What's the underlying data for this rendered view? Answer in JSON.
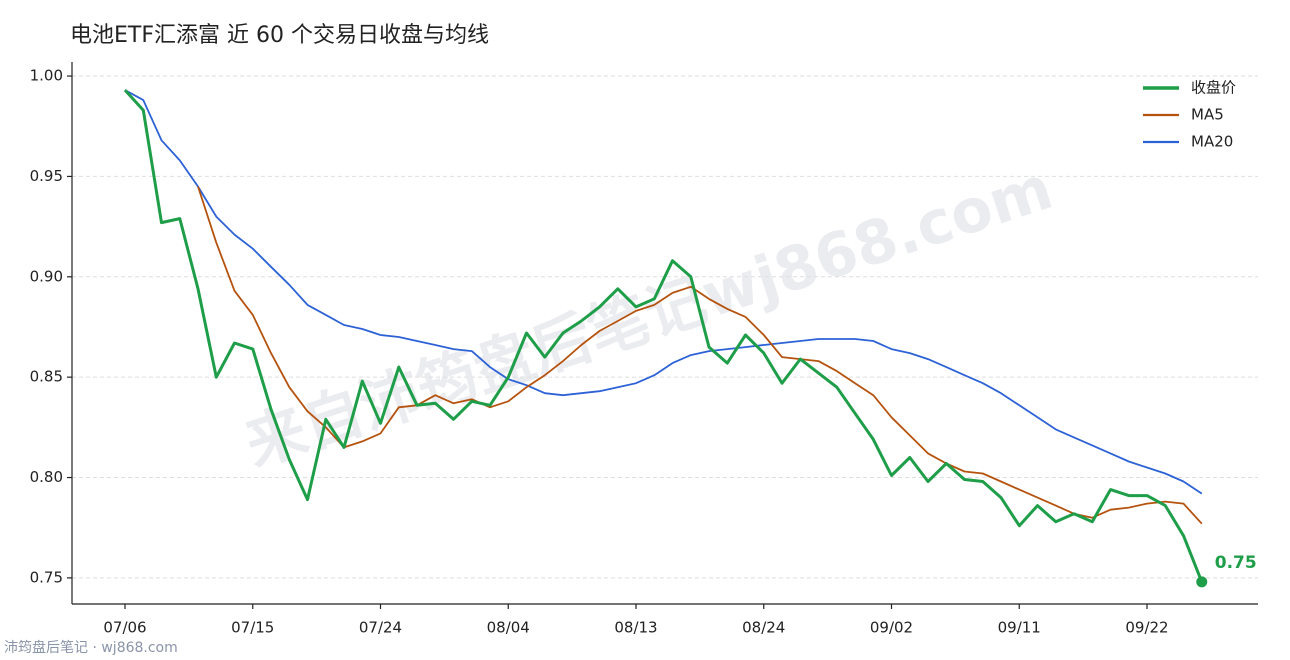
{
  "chart_data": {
    "type": "line",
    "title": "电池ETF汇添富 近 60 个交易日收盘与均线",
    "watermark": "来自沛筠盘后笔记wj868.com",
    "footer": "沛筠盘后笔记 · wj868.com",
    "categories": [
      "07/06",
      null,
      null,
      null,
      null,
      null,
      null,
      "07/15",
      null,
      null,
      null,
      null,
      null,
      null,
      "07/24",
      null,
      null,
      null,
      null,
      null,
      null,
      "08/04",
      null,
      null,
      null,
      null,
      null,
      null,
      "08/13",
      null,
      null,
      null,
      null,
      null,
      null,
      "08/24",
      null,
      null,
      null,
      null,
      null,
      null,
      "09/02",
      null,
      null,
      null,
      null,
      null,
      null,
      "09/11",
      null,
      null,
      null,
      null,
      null,
      null,
      "09/22",
      null,
      null,
      null
    ],
    "series": [
      {
        "name": "收盘价",
        "color": "#1f9e49",
        "width": 3,
        "values": [
          0.993,
          0.983,
          0.927,
          0.929,
          0.894,
          0.85,
          0.867,
          0.864,
          0.834,
          0.809,
          0.789,
          0.829,
          0.815,
          0.848,
          0.827,
          0.855,
          0.836,
          0.837,
          0.829,
          0.838,
          0.836,
          0.85,
          0.872,
          0.86,
          0.872,
          0.878,
          0.885,
          0.894,
          0.885,
          0.889,
          0.908,
          0.9,
          0.865,
          0.857,
          0.871,
          0.862,
          0.847,
          0.859,
          0.852,
          0.845,
          0.832,
          0.819,
          0.801,
          0.81,
          0.798,
          0.807,
          0.799,
          0.798,
          0.79,
          0.776,
          0.786,
          0.778,
          0.782,
          0.778,
          0.794,
          0.791,
          0.791,
          0.786,
          0.771,
          0.748
        ],
        "value_labels": [
          null,
          null,
          null,
          null,
          null,
          null,
          null,
          null,
          null,
          null,
          null,
          null,
          null,
          null,
          null,
          null,
          null,
          null,
          null,
          null,
          null,
          null,
          null,
          null,
          null,
          null,
          null,
          null,
          null,
          null,
          null,
          null,
          null,
          null,
          null,
          null,
          null,
          null,
          null,
          null,
          null,
          null,
          null,
          null,
          null,
          null,
          null,
          null,
          null,
          null,
          null,
          null,
          null,
          null,
          null,
          null,
          null,
          null,
          null,
          "0.75"
        ]
      },
      {
        "name": "MA5",
        "color": "#b5530e",
        "width": 1.8,
        "values": [
          null,
          null,
          null,
          null,
          0.945,
          0.917,
          0.893,
          0.881,
          0.862,
          0.845,
          0.833,
          0.825,
          0.815,
          0.818,
          0.822,
          0.835,
          0.836,
          0.841,
          0.837,
          0.839,
          0.835,
          0.838,
          0.845,
          0.851,
          0.858,
          0.866,
          0.873,
          0.878,
          0.883,
          0.886,
          0.892,
          0.895,
          0.889,
          0.884,
          0.88,
          0.871,
          0.86,
          0.859,
          0.858,
          0.853,
          0.847,
          0.841,
          0.83,
          0.821,
          0.812,
          0.807,
          0.803,
          0.802,
          0.798,
          0.794,
          0.79,
          0.786,
          0.782,
          0.78,
          0.784,
          0.785,
          0.787,
          0.788,
          0.787,
          0.777
        ]
      },
      {
        "name": "MA20",
        "color": "#2d62d6",
        "width": 1.8,
        "values": [
          0.993,
          0.988,
          0.968,
          0.958,
          0.945,
          0.93,
          0.921,
          0.914,
          0.905,
          0.896,
          0.886,
          0.881,
          0.876,
          0.874,
          0.871,
          0.87,
          0.868,
          0.866,
          0.864,
          0.863,
          0.855,
          0.849,
          0.846,
          0.842,
          0.841,
          0.842,
          0.843,
          0.845,
          0.847,
          0.851,
          0.857,
          0.861,
          0.863,
          0.864,
          0.865,
          0.866,
          0.867,
          0.868,
          0.869,
          0.869,
          0.869,
          0.868,
          0.864,
          0.862,
          0.859,
          0.855,
          0.851,
          0.847,
          0.842,
          0.836,
          0.83,
          0.824,
          0.82,
          0.816,
          0.812,
          0.808,
          0.805,
          0.802,
          0.798,
          0.792
        ]
      }
    ],
    "ylim": [
      0.737,
      1.007
    ],
    "yticks": [
      {
        "value": 1,
        "label": "1.00"
      },
      0.95,
      {
        "value": 0.9,
        "label": "0.90"
      },
      0.85,
      {
        "value": 0.8,
        "label": "0.80"
      },
      0.75
    ],
    "grid": true,
    "legend": "upper right"
  }
}
